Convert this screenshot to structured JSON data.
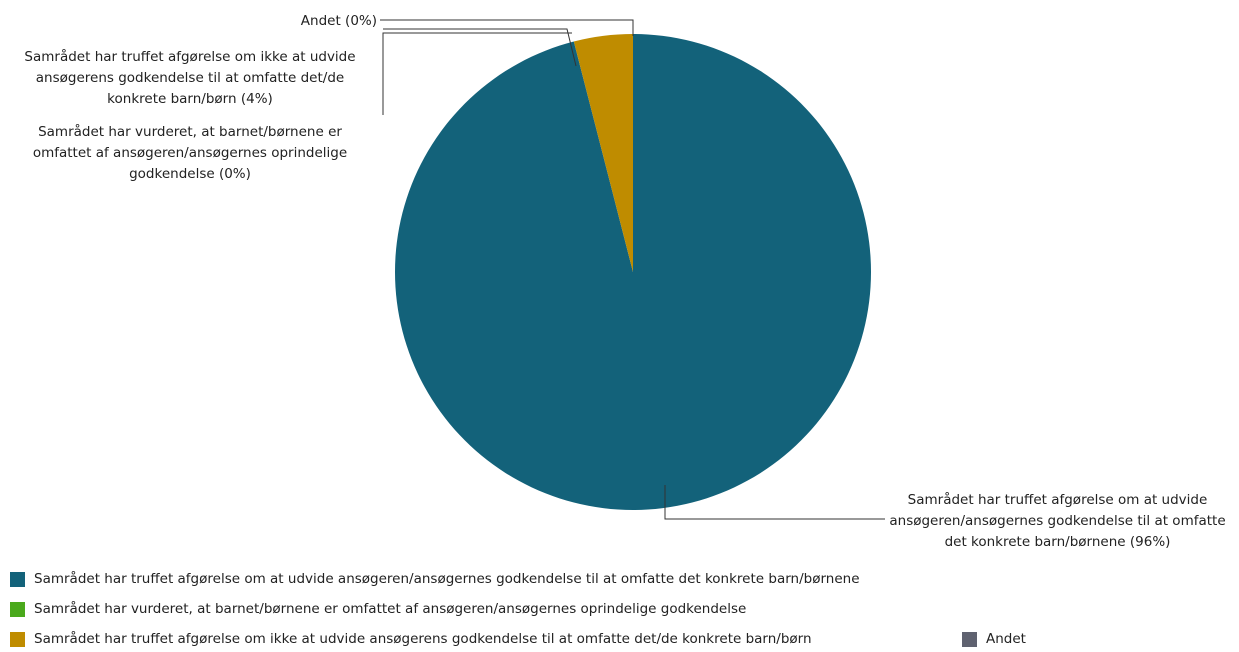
{
  "chart_data": {
    "type": "pie",
    "categories": [
      "Samrådet har truffet afgørelse om at udvide ansøgeren/ansøgernes godkendelse til at omfatte det konkrete barn/børnene",
      "Samrådet har vurderet, at barnet/børnene er omfattet af ansøgeren/ansøgernes oprindelige godkendelse",
      "Samrådet har truffet afgørelse om ikke at udvide ansøgerens godkendelse til at omfatte det/de konkrete barn/børn",
      "Andet"
    ],
    "values": [
      96,
      0,
      4,
      0
    ],
    "value_labels": [
      "(96%)",
      "(0%)",
      "(4%)",
      "(0%)"
    ],
    "colors": [
      "#13627a",
      "#4aa91c",
      "#bf8c00",
      "#5f6270"
    ]
  }
}
